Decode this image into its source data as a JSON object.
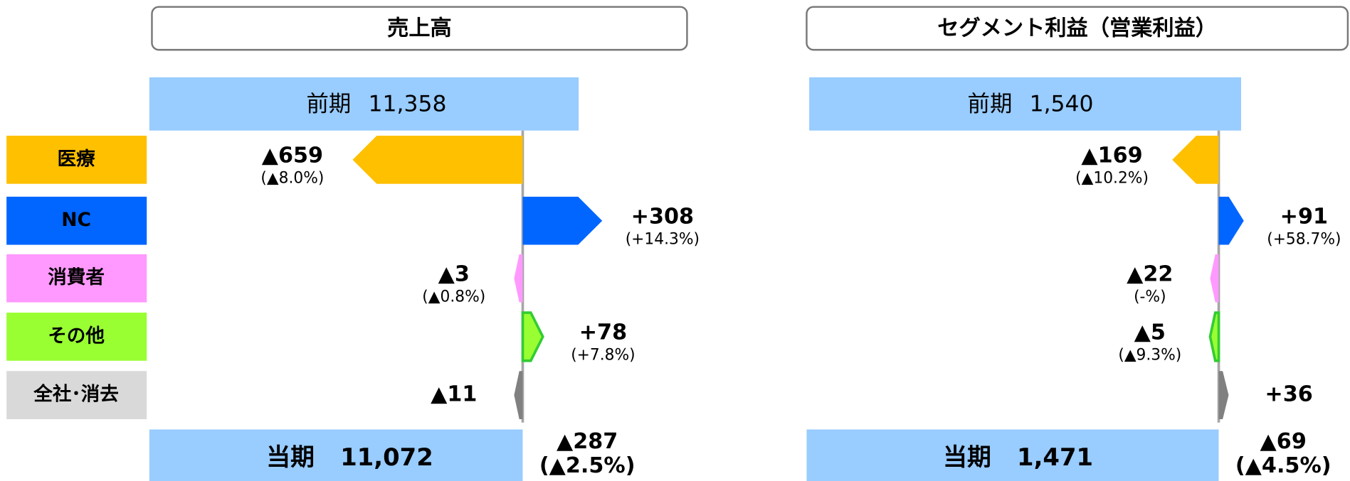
{
  "legend": [
    {
      "name": "医療",
      "color": "#FFC000"
    },
    {
      "name": "NC",
      "color": "#0066FF"
    },
    {
      "name": "消費者",
      "color": "#FF99FF"
    },
    {
      "name": "その他",
      "color": "#99FF33"
    },
    {
      "name": "全社･消去",
      "color": "#D9D9D9"
    }
  ],
  "chart_data": [
    {
      "type": "waterfall",
      "title": "売上高",
      "start_label": "前期",
      "start": 11358,
      "start_value_label": "11,358",
      "end_label": "当期",
      "end": 11072,
      "end_value_label": "11,072",
      "values": [
        -659,
        308,
        -3,
        78,
        -11
      ],
      "value_labels": [
        "▲659",
        "+308",
        "▲3",
        "+78",
        "▲11"
      ],
      "pct_labels": [
        "(▲8.0%)",
        "(+14.3%)",
        "(▲0.8%)",
        "(+7.8%)",
        null
      ],
      "colors": [
        "#FFC000",
        "#0066FF",
        "#FF99FF",
        "#99FF33",
        "#808080"
      ],
      "total_change": -287,
      "total_change_label": "▲287",
      "total_change_pct": "(▲2.5%)"
    },
    {
      "type": "waterfall",
      "title": "セグメント利益（営業利益）",
      "start_label": "前期",
      "start": 1540,
      "start_value_label": "1,540",
      "end_label": "当期",
      "end": 1471,
      "end_value_label": "1,471",
      "values": [
        -169,
        91,
        -22,
        -5,
        36
      ],
      "value_labels": [
        "▲169",
        "+91",
        "▲22",
        "▲5",
        "+36"
      ],
      "pct_labels": [
        "(▲10.2%)",
        "(+58.7%)",
        "(-%)",
        "(▲9.3%)",
        null
      ],
      "colors": [
        "#FFC000",
        "#0066FF",
        "#FF99FF",
        "#99FF33",
        "#808080"
      ],
      "total_change": -69,
      "total_change_label": "▲69",
      "total_change_pct": "(▲4.5%)"
    }
  ]
}
